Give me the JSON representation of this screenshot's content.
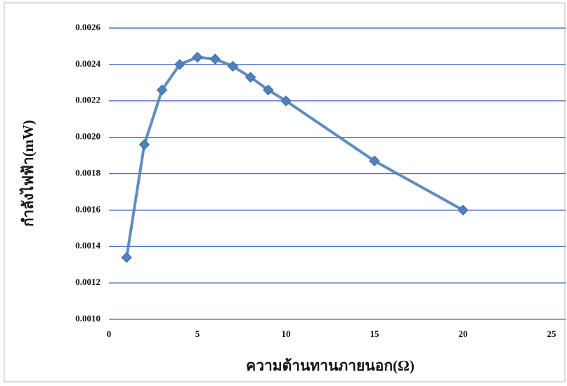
{
  "chart_data": {
    "type": "line",
    "x_label": "ความต้านทานภายนอก(Ω)",
    "y_label": "กำลังไฟฟ้า(mW)",
    "x": [
      1,
      2,
      3,
      4,
      5,
      6,
      7,
      8,
      9,
      10,
      15,
      20
    ],
    "series": [
      {
        "color": "#4f81bd",
        "values": [
          0.00134,
          0.00196,
          0.00226,
          0.0024,
          0.00244,
          0.00243,
          0.00239,
          0.00233,
          0.00226,
          0.0022,
          0.00187,
          0.0016
        ]
      }
    ],
    "xlim": [
      0,
      25
    ],
    "xticks": [
      0,
      5,
      10,
      15,
      20,
      25
    ],
    "ylim": [
      0.001,
      0.0026
    ],
    "yticks": [
      {
        "value": 0.001,
        "label": "0.0010"
      },
      {
        "value": 0.0012,
        "label": "0.0012"
      },
      {
        "value": 0.0014,
        "label": "0.0014"
      },
      {
        "value": 0.0016,
        "label": "0.0016"
      },
      {
        "value": 0.0018,
        "label": "0.0018"
      },
      {
        "value": 0.002,
        "label": "0.0020"
      },
      {
        "value": 0.0022,
        "label": "0.0022"
      },
      {
        "value": 0.0024,
        "label": "0.0024"
      },
      {
        "value": 0.0026,
        "label": "0.0026"
      }
    ],
    "grid": true,
    "grid_color": "#2f5fb5"
  }
}
